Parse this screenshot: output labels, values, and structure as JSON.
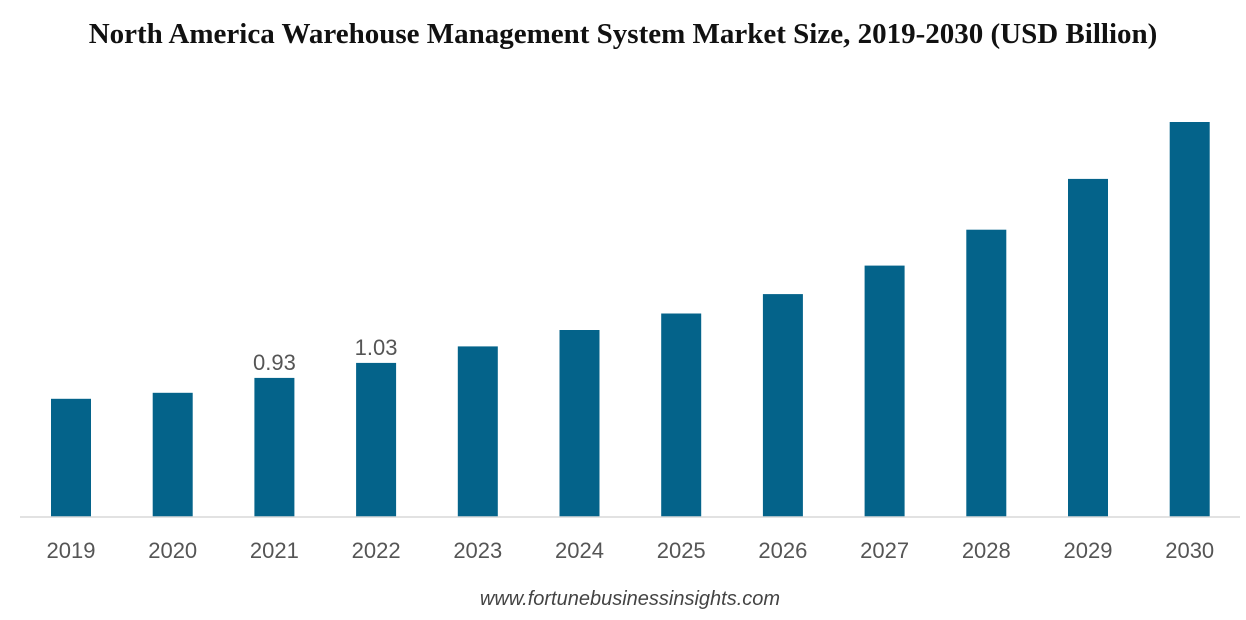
{
  "chart_data": {
    "type": "bar",
    "title": "North America Warehouse Management System Market Size, 2019-2030 (USD Billion)",
    "categories": [
      "2019",
      "2020",
      "2021",
      "2022",
      "2023",
      "2024",
      "2025",
      "2026",
      "2027",
      "2028",
      "2029",
      "2030"
    ],
    "values": [
      0.79,
      0.83,
      0.93,
      1.03,
      1.14,
      1.25,
      1.36,
      1.49,
      1.68,
      1.92,
      2.26,
      2.64
    ],
    "data_labels": [
      null,
      null,
      "0.93",
      "1.03",
      null,
      null,
      null,
      null,
      null,
      null,
      null,
      null
    ],
    "xlabel": "",
    "ylabel": "",
    "ylim": [
      0,
      2.64
    ],
    "grid": false,
    "bar_color": "#04638a",
    "axis_color": "#d9d9d9"
  },
  "source": "www.fortunebusinessinsights.com"
}
